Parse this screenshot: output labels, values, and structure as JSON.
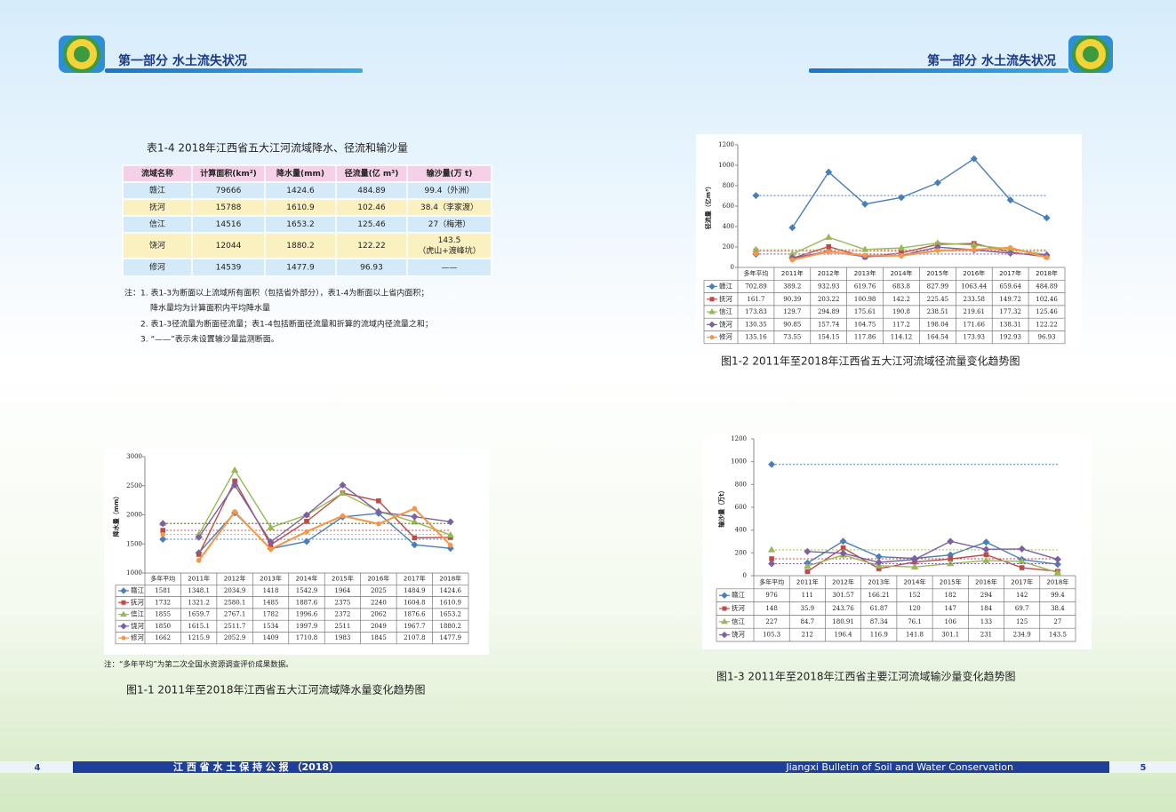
{
  "header": {
    "left_title": "第一部分  水土流失状况",
    "right_title": "第一部分  水土流失状况"
  },
  "table": {
    "title": "表1-4    2018年江西省五大江河流域降水、径流和输沙量",
    "columns": [
      "流域名称",
      "计算面积(km²)",
      "降水量(mm)",
      "径流量(亿 m³)",
      "输沙量(万 t)"
    ],
    "rows": [
      [
        "赣江",
        "79666",
        "1424.6",
        "484.89",
        [
          "99.4（外洲）"
        ]
      ],
      [
        "抚河",
        "15788",
        "1610.9",
        "102.46",
        [
          "38.4（李家渡）"
        ]
      ],
      [
        "信江",
        "14516",
        "1653.2",
        "125.46",
        [
          "27（梅港）"
        ]
      ],
      [
        "饶河",
        "12044",
        "1880.2",
        "122.22",
        [
          "143.5",
          "（虎山+渡峰坑）"
        ]
      ],
      [
        "修河",
        "14539",
        "1477.9",
        "96.93",
        [
          "——"
        ]
      ]
    ]
  },
  "notes": [
    "注：1. 表1-3为断面以上流域所有面积（包括省外部分），表1-4为断面以上省内面积；",
    "降水量均为计算面积内平均降水量",
    "2. 表1-3径流量为断面径流量；表1-4包括断面径流量和折算的流域内径流量之和；",
    "3. “——”表示未设置输沙量监测断面。"
  ],
  "chart_data": [
    {
      "type": "line",
      "ylabel": "降水量（mm）",
      "ylim": [
        1000,
        3000
      ],
      "yticks": [
        1000,
        1500,
        2000,
        2500,
        3000
      ],
      "categories": [
        "多年平均",
        "2011年",
        "2012年",
        "2013年",
        "2014年",
        "2015年",
        "2016年",
        "2017年",
        "2018年"
      ],
      "series": [
        {
          "name": "赣江",
          "color": "#4a7ebb",
          "marker": "diamond",
          "values": [
            1581,
            1348.1,
            2034.9,
            1418,
            1542.9,
            1964,
            2025,
            1484.9,
            1424.6
          ]
        },
        {
          "name": "抚河",
          "color": "#be4b48",
          "marker": "square",
          "values": [
            1732,
            1321.2,
            2580.1,
            1485,
            1887.6,
            2375,
            2240,
            1604.8,
            1610.9
          ]
        },
        {
          "name": "信江",
          "color": "#98b954",
          "marker": "triangle",
          "values": [
            1855,
            1659.7,
            2767.1,
            1782,
            1996.6,
            2372,
            2062,
            1876.6,
            1653.2
          ]
        },
        {
          "name": "饶河",
          "color": "#7d60a0",
          "marker": "diamond",
          "values": [
            1850,
            1615.1,
            2511.7,
            1534,
            1997.9,
            2511,
            2049,
            1967.7,
            1880.2
          ]
        },
        {
          "name": "修河",
          "color": "#f79646",
          "marker": "circle",
          "values": [
            1662,
            1215.9,
            2052.9,
            1409,
            1710.8,
            1983,
            1845,
            2107.8,
            1477.9
          ]
        }
      ],
      "note": "注：“多年平均”为第二次全国水资源调查评价成果数据。",
      "caption": "图1-1    2011年至2018年江西省五大江河流域降水量变化趋势图"
    },
    {
      "type": "line",
      "ylabel": "径流量（亿m³）",
      "ylim": [
        0,
        1200
      ],
      "yticks": [
        0,
        200,
        400,
        600,
        800,
        1000,
        1200
      ],
      "categories": [
        "多年平均",
        "2011年",
        "2012年",
        "2013年",
        "2014年",
        "2015年",
        "2016年",
        "2017年",
        "2018年"
      ],
      "series": [
        {
          "name": "赣江",
          "color": "#4a7ebb",
          "marker": "diamond",
          "values": [
            702.89,
            389.2,
            932.93,
            619.76,
            683.8,
            827.99,
            1063.44,
            659.64,
            484.89
          ]
        },
        {
          "name": "抚河",
          "color": "#be4b48",
          "marker": "square",
          "values": [
            161.7,
            90.39,
            203.22,
            100.98,
            142.2,
            225.45,
            233.58,
            149.72,
            102.46
          ]
        },
        {
          "name": "信江",
          "color": "#98b954",
          "marker": "triangle",
          "values": [
            173.83,
            129.7,
            294.89,
            175.61,
            190.8,
            238.51,
            219.61,
            177.32,
            125.46
          ]
        },
        {
          "name": "饶河",
          "color": "#7d60a0",
          "marker": "diamond",
          "values": [
            130.35,
            90.85,
            157.74,
            104.75,
            117.2,
            198.04,
            171.66,
            138.31,
            122.22
          ]
        },
        {
          "name": "修河",
          "color": "#f79646",
          "marker": "circle",
          "values": [
            135.16,
            73.55,
            154.15,
            117.86,
            114.12,
            164.54,
            173.93,
            192.93,
            96.93
          ]
        }
      ],
      "caption": "图1-2    2011年至2018年江西省五大江河流域径流量变化趋势图"
    },
    {
      "type": "line",
      "ylabel": "输沙量（万t）",
      "ylim": [
        0,
        1200
      ],
      "yticks": [
        0,
        200,
        400,
        600,
        800,
        1000,
        1200
      ],
      "categories": [
        "多年平均",
        "2011年",
        "2012年",
        "2013年",
        "2014年",
        "2015年",
        "2016年",
        "2017年",
        "2018年"
      ],
      "series": [
        {
          "name": "赣江",
          "color": "#4a7ebb",
          "marker": "diamond",
          "values": [
            976,
            111,
            301.57,
            166.21,
            152,
            182,
            294,
            142,
            99.4
          ]
        },
        {
          "name": "抚河",
          "color": "#be4b48",
          "marker": "square",
          "values": [
            148,
            35.9,
            243.76,
            61.87,
            120,
            147,
            184,
            69.7,
            38.4
          ]
        },
        {
          "name": "信江",
          "color": "#98b954",
          "marker": "triangle",
          "values": [
            227,
            84.7,
            180.91,
            87.34,
            76.1,
            106,
            133,
            125,
            27
          ]
        },
        {
          "name": "饶河",
          "color": "#7d60a0",
          "marker": "diamond",
          "values": [
            105.3,
            212,
            196.4,
            116.9,
            141.8,
            301.1,
            231,
            234.9,
            143.5
          ]
        }
      ],
      "caption": "图1-3    2011年至2018年江西省主要江河流域输沙量变化趋势图"
    }
  ],
  "footer": {
    "left_page": "4",
    "left_title": "江 西 省 水 土 保 持 公 报 （2018）",
    "right_title": "Jiangxi Bulletin of Soil and Water Conservation",
    "right_page": "5"
  }
}
